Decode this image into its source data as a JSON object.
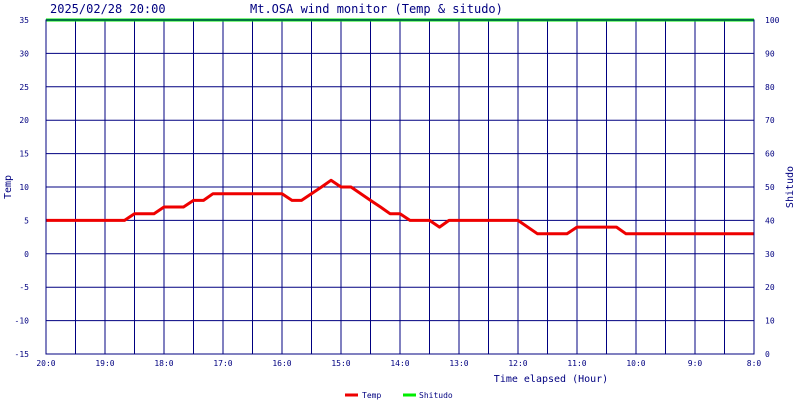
{
  "header": {
    "datetime": "2025/02/28 20:00",
    "title": "Mt.OSA wind monitor (Temp & situdo)"
  },
  "chart_data": {
    "type": "line",
    "title": "Mt.OSA wind monitor (Temp & situdo)",
    "xlabel": "Time elapsed (Hour)",
    "ylabel": "Temp",
    "y2label": "Shitudo",
    "x_range_hours_elapsed": [
      0,
      12
    ],
    "x_direction": "elapsed hours increase to the right",
    "x_ticks": [
      "20:0",
      "19:0",
      "18:0",
      "17:0",
      "16:0",
      "15:0",
      "14:0",
      "13:0",
      "12:0",
      "11:0",
      "10:0",
      "9:0",
      "8:0"
    ],
    "y_ticks": [
      "35",
      "30",
      "25",
      "20",
      "15",
      "10",
      "5",
      "0",
      "-5",
      "-10",
      "-15"
    ],
    "y2_ticks": [
      "100",
      "90",
      "80",
      "70",
      "60",
      "50",
      "40",
      "30",
      "20",
      "10",
      "0"
    ],
    "ylim": [
      -15,
      35
    ],
    "y2lim": [
      0,
      100
    ],
    "grid": true,
    "legend_position": "bottom",
    "series": [
      {
        "name": "Temp",
        "axis": "left",
        "color": "#ee0000",
        "points": [
          [
            0,
            5
          ],
          [
            0.33,
            5
          ],
          [
            0.67,
            5
          ],
          [
            1.0,
            5
          ],
          [
            1.33,
            5
          ],
          [
            1.5,
            6
          ],
          [
            1.83,
            6
          ],
          [
            2.0,
            7
          ],
          [
            2.33,
            7
          ],
          [
            2.5,
            8
          ],
          [
            2.67,
            8
          ],
          [
            2.83,
            9
          ],
          [
            3.17,
            9
          ],
          [
            3.5,
            9
          ],
          [
            3.83,
            9
          ],
          [
            4.0,
            9
          ],
          [
            4.17,
            8
          ],
          [
            4.33,
            8
          ],
          [
            4.67,
            10
          ],
          [
            4.83,
            11
          ],
          [
            5.0,
            10
          ],
          [
            5.17,
            10
          ],
          [
            5.5,
            8
          ],
          [
            5.67,
            7
          ],
          [
            5.83,
            6
          ],
          [
            6.0,
            6
          ],
          [
            6.17,
            5
          ],
          [
            6.5,
            5
          ],
          [
            6.67,
            4
          ],
          [
            6.83,
            5
          ],
          [
            7.17,
            5
          ],
          [
            7.5,
            5
          ],
          [
            7.83,
            5
          ],
          [
            8.0,
            5
          ],
          [
            8.33,
            3
          ],
          [
            8.67,
            3
          ],
          [
            8.83,
            3
          ],
          [
            9.0,
            4
          ],
          [
            9.33,
            4
          ],
          [
            9.67,
            4
          ],
          [
            9.83,
            3
          ],
          [
            10.17,
            3
          ],
          [
            10.5,
            3
          ],
          [
            10.83,
            3
          ],
          [
            11.17,
            3
          ],
          [
            11.5,
            3
          ],
          [
            11.83,
            3
          ],
          [
            12.0,
            3
          ]
        ]
      },
      {
        "name": "Shitudo",
        "axis": "right",
        "color": "#00ee00",
        "points": [
          [
            0,
            100
          ],
          [
            12,
            100
          ]
        ]
      }
    ]
  }
}
